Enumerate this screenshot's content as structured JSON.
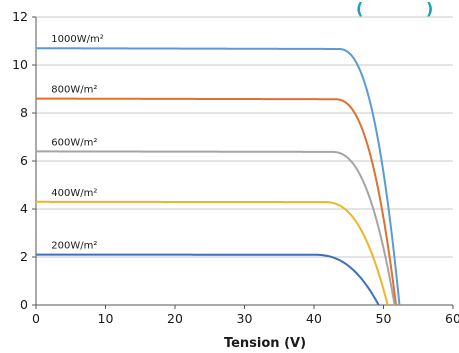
{
  "header": {
    "partial_title": "(",
    "partial_title_end": ")",
    "color": "#1aa3b8"
  },
  "chart_data": {
    "type": "line",
    "xlabel": "Tension (V)",
    "ylabel": "",
    "xlim": [
      0,
      60
    ],
    "ylim": [
      0,
      12
    ],
    "x_ticks": [
      "0",
      "10",
      "20",
      "30",
      "40",
      "50",
      "60"
    ],
    "y_ticks": [
      "0",
      "2",
      "4",
      "6",
      "8",
      "10",
      "12"
    ],
    "grid": "horizontal",
    "series": [
      {
        "name": "1000W/m²",
        "color": "#5b9bd5",
        "isc": 10.7,
        "voc": 52.3,
        "knee_v": 43.5
      },
      {
        "name": "800W/m²",
        "color": "#e07030",
        "isc": 8.6,
        "voc": 51.8,
        "knee_v": 43.0
      },
      {
        "name": "600W/m²",
        "color": "#a5a5a5",
        "isc": 6.4,
        "voc": 51.6,
        "knee_v": 42.5
      },
      {
        "name": "400W/m²",
        "color": "#f0b429",
        "isc": 4.3,
        "voc": 50.6,
        "knee_v": 41.5
      },
      {
        "name": "200W/m²",
        "color": "#3f6fb8",
        "isc": 2.1,
        "voc": 49.3,
        "knee_v": 40.0
      }
    ]
  }
}
